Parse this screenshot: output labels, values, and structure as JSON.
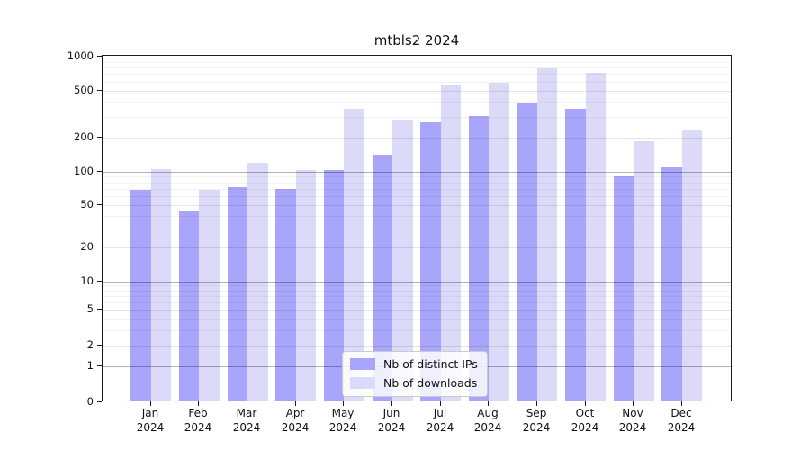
{
  "chart_data": {
    "type": "bar",
    "title": "mtbls2 2024",
    "categories": [
      "Jan",
      "Feb",
      "Mar",
      "Apr",
      "May",
      "Jun",
      "Jul",
      "Aug",
      "Sep",
      "Oct",
      "Nov",
      "Dec"
    ],
    "category_year": "2024",
    "series": [
      {
        "name": "Nb of distinct IPs",
        "color": "#a8a5fa",
        "values": [
          66,
          43,
          70,
          67,
          100,
          136,
          258,
          291,
          374,
          336,
          87,
          105
        ]
      },
      {
        "name": "Nb of downloads",
        "color": "#dcdaf9",
        "values": [
          102,
          66,
          114,
          100,
          338,
          274,
          540,
          565,
          750,
          690,
          179,
          225
        ]
      }
    ],
    "yscale": "symlog",
    "ylim": [
      0,
      1000
    ],
    "yticks": [
      0,
      1,
      2,
      5,
      10,
      20,
      50,
      100,
      200,
      500,
      1000
    ],
    "grid": "both",
    "legend_position": "lower center"
  },
  "colors": {
    "background": "#ffffff",
    "axis": "#1a1a1a",
    "grid_major": "rgba(0,0,0,0.30)",
    "grid_mid": "rgba(0,0,0,0.10)",
    "grid_minor": "rgba(0,0,0,0.05)",
    "bar_distinct_ips": "#a8a5fa",
    "bar_downloads": "#dcdaf9"
  }
}
